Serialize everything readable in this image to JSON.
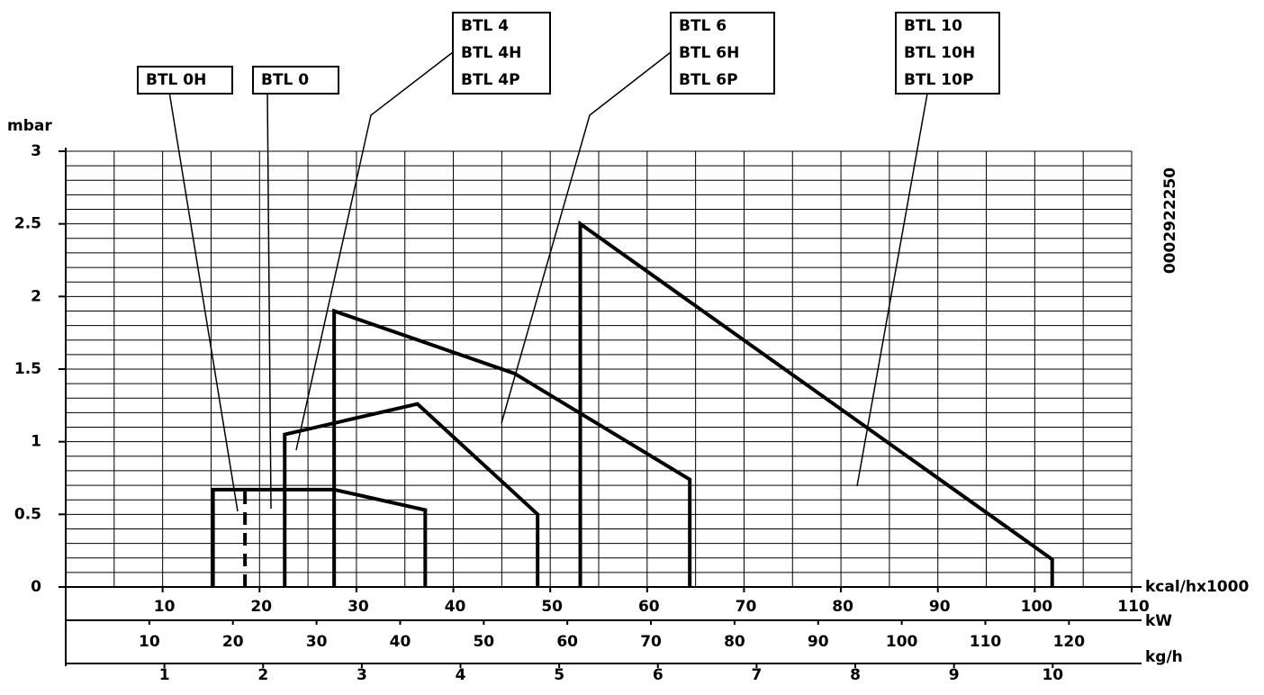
{
  "chart_data": {
    "type": "line",
    "y_label": "mbar",
    "x_label": "kcal/hx1000",
    "ylim": [
      0,
      3
    ],
    "yticks": [
      0,
      0.5,
      1,
      1.5,
      2,
      2.5,
      3
    ],
    "xlim": [
      0,
      110
    ],
    "xticks": [
      10,
      20,
      30,
      40,
      50,
      60,
      70,
      80,
      90,
      100,
      110
    ],
    "x_gridlines": [
      0,
      5,
      10,
      15,
      20,
      25,
      30,
      35,
      40,
      45,
      50,
      55,
      60,
      65,
      70,
      75,
      80,
      85,
      90,
      95,
      100,
      105,
      110
    ],
    "y_gridlines": [
      0,
      0.1,
      0.2,
      0.3,
      0.4,
      0.5,
      0.6,
      0.7,
      0.8,
      0.9,
      1,
      1.1,
      1.2,
      1.3,
      1.4,
      1.5,
      1.6,
      1.7,
      1.8,
      1.9,
      2,
      2.1,
      2.2,
      2.3,
      2.4,
      2.5,
      2.6,
      2.7,
      2.8,
      2.9,
      3
    ],
    "grid": true,
    "secondary_axes": [
      {
        "label": "kW",
        "xlim": [
          0,
          127.5
        ],
        "xticks": [
          10,
          20,
          30,
          40,
          50,
          60,
          70,
          80,
          90,
          100,
          110,
          120
        ]
      },
      {
        "label": "kg/h",
        "xlim": [
          0,
          10.8
        ],
        "xticks": [
          1,
          2,
          3,
          4,
          5,
          6,
          7,
          8,
          9,
          10
        ]
      }
    ],
    "series": [
      {
        "color": "#000000",
        "dashed": false,
        "x": [
          15.2,
          15.2,
          27.7,
          37.1,
          37.1
        ],
        "values": [
          0,
          0.67,
          0.67,
          0.53,
          0
        ]
      },
      {
        "color": "#000000",
        "dashed": true,
        "x": [
          18.5,
          18.5
        ],
        "values": [
          0,
          0.67
        ]
      },
      {
        "color": "#000000",
        "dashed": false,
        "x": [
          22.6,
          22.6,
          36.3,
          48.7,
          48.7
        ],
        "values": [
          0,
          1.05,
          1.26,
          0.5,
          0
        ]
      },
      {
        "color": "#000000",
        "dashed": false,
        "x": [
          27.7,
          27.7,
          46.3,
          64.4,
          64.4
        ],
        "values": [
          0,
          1.9,
          1.47,
          0.74,
          0
        ]
      },
      {
        "color": "#000000",
        "dashed": false,
        "x": [
          53.1,
          53.1,
          101.8,
          101.8
        ],
        "values": [
          0,
          2.5,
          0.19,
          0
        ]
      }
    ],
    "annotations": [
      {
        "lines": [
          "BTL 0H"
        ]
      },
      {
        "lines": [
          "BTL 0"
        ]
      },
      {
        "lines": [
          "BTL 4",
          "BTL 4H",
          "BTL 4P"
        ]
      },
      {
        "lines": [
          "BTL 6",
          "BTL 6H",
          "BTL 6P"
        ]
      },
      {
        "lines": [
          "BTL 10",
          "BTL 10H",
          "BTL 10P"
        ]
      }
    ],
    "code": "0002922250"
  }
}
